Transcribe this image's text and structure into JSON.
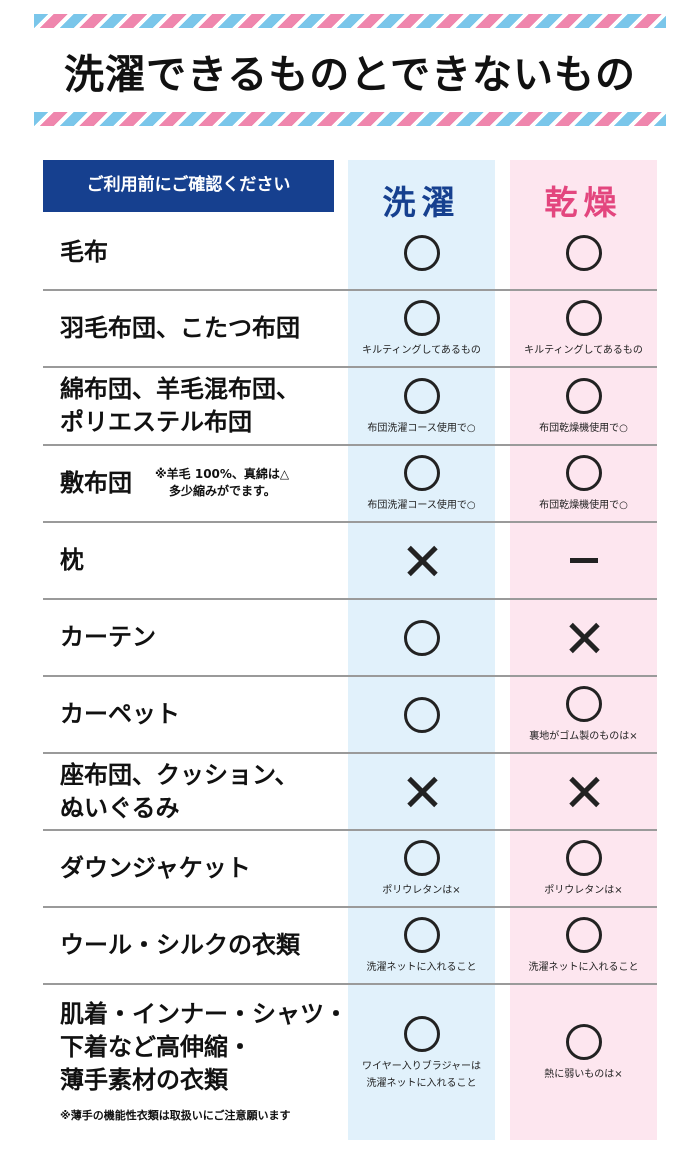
{
  "title": "洗濯できるものとできないもの",
  "check_label": "ご利用前にご確認ください",
  "columns": {
    "wash": "洗濯",
    "dry": "乾燥"
  },
  "rows": [
    {
      "item_lines": [
        "毛布"
      ],
      "wash": {
        "mark": "○",
        "note": ""
      },
      "dry": {
        "mark": "○",
        "note": ""
      }
    },
    {
      "item_lines": [
        "羽毛布団、こたつ布団"
      ],
      "wash": {
        "mark": "○",
        "note": "キルティングしてあるもの"
      },
      "dry": {
        "mark": "○",
        "note": "キルティングしてあるもの"
      }
    },
    {
      "item_lines": [
        "綿布団、羊毛混布団、",
        "ポリエステル布団"
      ],
      "wash": {
        "mark": "○",
        "note": "布団洗濯コース使用で○"
      },
      "dry": {
        "mark": "○",
        "note": "布団乾燥機使用で○"
      }
    },
    {
      "item_lines": [
        "敷布団"
      ],
      "item_note_lines": [
        "※羊毛 100%、真綿は△",
        "多少縮みがでます。"
      ],
      "wash": {
        "mark": "○",
        "note": "布団洗濯コース使用で○"
      },
      "dry": {
        "mark": "○",
        "note": "布団乾燥機使用で○"
      }
    },
    {
      "item_lines": [
        "枕"
      ],
      "wash": {
        "mark": "×",
        "note": ""
      },
      "dry": {
        "mark": "－",
        "note": ""
      }
    },
    {
      "item_lines": [
        "カーテン"
      ],
      "wash": {
        "mark": "○",
        "note": ""
      },
      "dry": {
        "mark": "×",
        "note": ""
      }
    },
    {
      "item_lines": [
        "カーペット"
      ],
      "wash": {
        "mark": "○",
        "note": ""
      },
      "dry": {
        "mark": "○",
        "note": "裏地がゴム製のものは×"
      }
    },
    {
      "item_lines": [
        "座布団、クッション、",
        "ぬいぐるみ"
      ],
      "wash": {
        "mark": "×",
        "note": ""
      },
      "dry": {
        "mark": "×",
        "note": ""
      }
    },
    {
      "item_lines": [
        "ダウンジャケット"
      ],
      "wash": {
        "mark": "○",
        "note": "ポリウレタンは×"
      },
      "dry": {
        "mark": "○",
        "note": "ポリウレタンは×"
      }
    },
    {
      "item_lines": [
        "ウール・シルクの衣類"
      ],
      "wash": {
        "mark": "○",
        "note": "洗濯ネットに入れること"
      },
      "dry": {
        "mark": "○",
        "note": "洗濯ネットに入れること"
      }
    },
    {
      "item_lines": [
        "肌着・インナー・シャツ・",
        "下着など高伸縮・",
        "薄手素材の衣類"
      ],
      "item_note_bottom": "※薄手の機能性衣類は取扱いにご注意願います",
      "wash": {
        "mark": "○",
        "note_lines": [
          "ワイヤー入りブラジャーは",
          "洗濯ネットに入れること"
        ]
      },
      "dry": {
        "mark": "○",
        "note": "熱に弱いものは×"
      }
    }
  ]
}
